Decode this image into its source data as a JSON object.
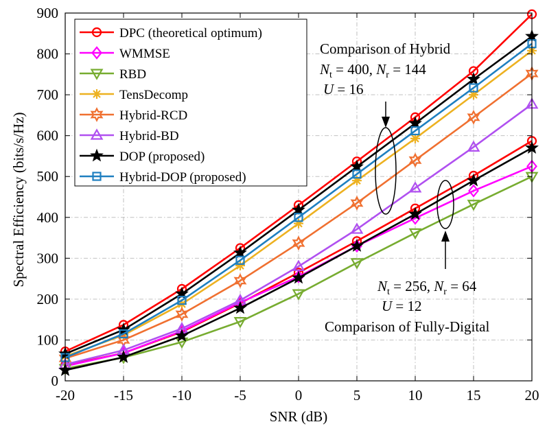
{
  "chart_data": {
    "type": "line",
    "title": "",
    "xlabel": "SNR (dB)",
    "ylabel": "Spectral Efficiency (bits/s/Hz)",
    "xlim": [
      -20,
      20
    ],
    "ylim": [
      0,
      900
    ],
    "x": [
      -20,
      -15,
      -10,
      -5,
      0,
      5,
      10,
      15,
      20
    ],
    "x_tick_labels": [
      "-20",
      "-15",
      "-10",
      "-5",
      "0",
      "5",
      "10",
      "15",
      "20"
    ],
    "y_ticks": [
      0,
      100,
      200,
      300,
      400,
      500,
      600,
      700,
      800,
      900
    ],
    "y_tick_labels": [
      "0",
      "100",
      "200",
      "300",
      "400",
      "500",
      "600",
      "700",
      "800",
      "900"
    ],
    "grid": true,
    "legend_position": "top-left",
    "series": [
      {
        "name": "DPC (theoretical optimum)",
        "color": "#ff0000",
        "marker": "circle",
        "group": "hybrid",
        "values": [
          72,
          137,
          225,
          325,
          430,
          537,
          645,
          758,
          897
        ]
      },
      {
        "name": "DPC (theoretical optimum)",
        "color": "#ff0000",
        "marker": "circle",
        "group": "fully-digital",
        "values": [
          38,
          68,
          120,
          190,
          265,
          342,
          422,
          502,
          587
        ]
      },
      {
        "name": "WMMSE",
        "color": "#ff00ff",
        "marker": "diamond",
        "group": "fully-digital",
        "values": [
          36,
          68,
          122,
          192,
          255,
          330,
          398,
          465,
          525
        ]
      },
      {
        "name": "RBD",
        "color": "#77ac30",
        "marker": "triangle-down",
        "group": "fully-digital",
        "values": [
          30,
          57,
          95,
          145,
          213,
          289,
          362,
          432,
          500
        ]
      },
      {
        "name": "TensDecomp",
        "color": "#edb120",
        "marker": "asterisk",
        "group": "hybrid",
        "values": [
          60,
          112,
          188,
          282,
          385,
          490,
          593,
          700,
          808
        ]
      },
      {
        "name": "Hybrid-RCD",
        "color": "#f07030",
        "marker": "hexagram",
        "group": "hybrid",
        "values": [
          55,
          100,
          163,
          245,
          337,
          435,
          540,
          645,
          752
        ]
      },
      {
        "name": "Hybrid-BD",
        "color": "#b050f0",
        "marker": "triangle-up",
        "group": "hybrid",
        "values": [
          40,
          75,
          128,
          197,
          280,
          371,
          472,
          572,
          677
        ]
      },
      {
        "name": "DOP (proposed)",
        "color": "#000000",
        "marker": "star",
        "group": "hybrid",
        "values": [
          66,
          125,
          213,
          313,
          418,
          524,
          630,
          738,
          843
        ]
      },
      {
        "name": "DOP (proposed)",
        "color": "#000000",
        "marker": "star",
        "group": "fully-digital",
        "values": [
          26,
          58,
          110,
          178,
          252,
          330,
          408,
          490,
          570
        ]
      },
      {
        "name": "Hybrid-DOP (proposed)",
        "color": "#1e7fc0",
        "marker": "square",
        "group": "hybrid",
        "values": [
          57,
          115,
          197,
          295,
          400,
          506,
          612,
          717,
          825
        ]
      }
    ],
    "legend": [
      {
        "label": "DPC (theoretical optimum)",
        "color": "#ff0000",
        "marker": "circle"
      },
      {
        "label": "WMMSE",
        "color": "#ff00ff",
        "marker": "diamond"
      },
      {
        "label": "RBD",
        "color": "#77ac30",
        "marker": "triangle-down"
      },
      {
        "label": "TensDecomp",
        "color": "#edb120",
        "marker": "asterisk"
      },
      {
        "label": "Hybrid-RCD",
        "color": "#f07030",
        "marker": "hexagram"
      },
      {
        "label": "Hybrid-BD",
        "color": "#b050f0",
        "marker": "triangle-up"
      },
      {
        "label": "DOP (proposed)",
        "color": "#000000",
        "marker": "star"
      },
      {
        "label": "Hybrid-DOP (proposed)",
        "color": "#1e7fc0",
        "marker": "square"
      }
    ],
    "annotations": {
      "hybrid": {
        "title": "Comparison of Hybrid",
        "line1": "N_t = 400, N_r = 144",
        "line1_parts": {
          "n": "N",
          "sub_t": "t",
          "eq_t": " = 400, ",
          "sub_r": "r",
          "eq_r": " = 144"
        },
        "line2": "U = 16",
        "line2_parts": {
          "u": "U",
          "eq": " = 16"
        }
      },
      "fully_digital": {
        "title": "Comparison of Fully-Digital",
        "line1": "N_t = 256, N_r = 64",
        "line1_parts": {
          "n": "N",
          "sub_t": "t",
          "eq_t": " = 256, ",
          "sub_r": "r",
          "eq_r": " = 64"
        },
        "line2": "U = 12",
        "line2_parts": {
          "u": "U",
          "eq": " = 12"
        }
      }
    }
  }
}
